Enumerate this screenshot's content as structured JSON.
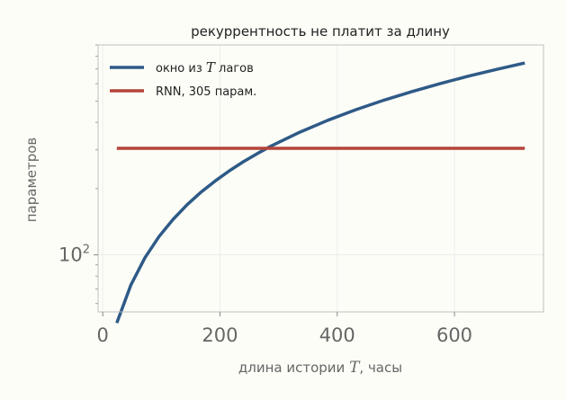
{
  "chart_data": {
    "type": "line",
    "title": "рекуррентность не платит за длину",
    "xlabel_pre": "длина истории ",
    "xlabel_var": "T",
    "xlabel_post": ", часы",
    "ylabel": "параметров",
    "yscale": "log",
    "xlim": [
      -8,
      752
    ],
    "ylim": [
      55,
      900
    ],
    "x_ticks": [
      {
        "value": 0,
        "label": "0"
      },
      {
        "value": 200,
        "label": "200"
      },
      {
        "value": 400,
        "label": "400"
      },
      {
        "value": 600,
        "label": "600"
      }
    ],
    "y_ticks": [
      {
        "value": 100,
        "base": "10",
        "exp": "2"
      }
    ],
    "legend": {
      "position": "top-left",
      "entries": [
        {
          "pre": "окно из ",
          "var": "T",
          "post": " лагов"
        },
        {
          "pre": "RNN, 305 парам.",
          "var": "",
          "post": ""
        }
      ]
    },
    "grid": true,
    "series": [
      {
        "name": "окно из T лагов",
        "color": "#2e5a87",
        "points": [
          [
            24,
            49
          ],
          [
            48,
            73
          ],
          [
            72,
            97
          ],
          [
            96,
            121
          ],
          [
            120,
            145
          ],
          [
            144,
            169
          ],
          [
            168,
            193
          ],
          [
            192,
            217
          ],
          [
            216,
            241
          ],
          [
            240,
            265
          ],
          [
            264,
            289
          ],
          [
            288,
            313
          ],
          [
            336,
            361
          ],
          [
            384,
            409
          ],
          [
            432,
            457
          ],
          [
            480,
            505
          ],
          [
            528,
            553
          ],
          [
            576,
            601
          ],
          [
            624,
            649
          ],
          [
            672,
            697
          ],
          [
            720,
            745
          ]
        ]
      },
      {
        "name": "RNN, 305 парам.",
        "color": "#b5443a",
        "points": [
          [
            24,
            305
          ],
          [
            720,
            305
          ]
        ]
      }
    ]
  }
}
